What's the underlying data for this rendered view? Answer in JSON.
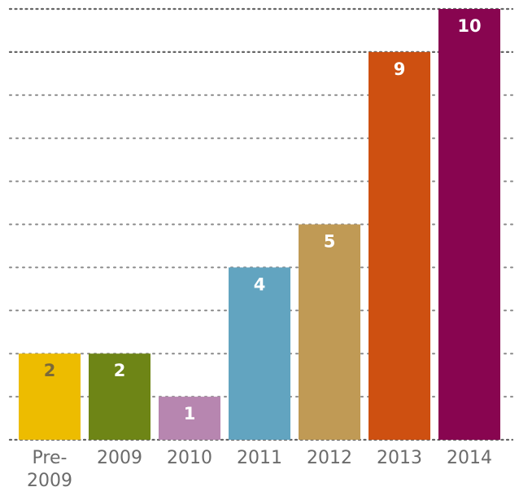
{
  "chart_data": {
    "type": "bar",
    "categories": [
      [
        "Pre-",
        "2009"
      ],
      [
        "2009"
      ],
      [
        "2010"
      ],
      [
        "2011"
      ],
      [
        "2012"
      ],
      [
        "2013"
      ],
      [
        "2014"
      ]
    ],
    "values": [
      2,
      2,
      1,
      4,
      5,
      9,
      10
    ],
    "colors": [
      "#EDBC00",
      "#6E8516",
      "#B786B0",
      "#62A4C0",
      "#C09A55",
      "#CE5011",
      "#880550"
    ],
    "label_colors": [
      "#7a6a3a",
      "#ffffff",
      "#ffffff",
      "#ffffff",
      "#ffffff",
      "#ffffff",
      "#ffffff"
    ],
    "title": "",
    "xlabel": "",
    "ylabel": "",
    "ylim": [
      0,
      10
    ],
    "grid": true,
    "legend": "none"
  }
}
